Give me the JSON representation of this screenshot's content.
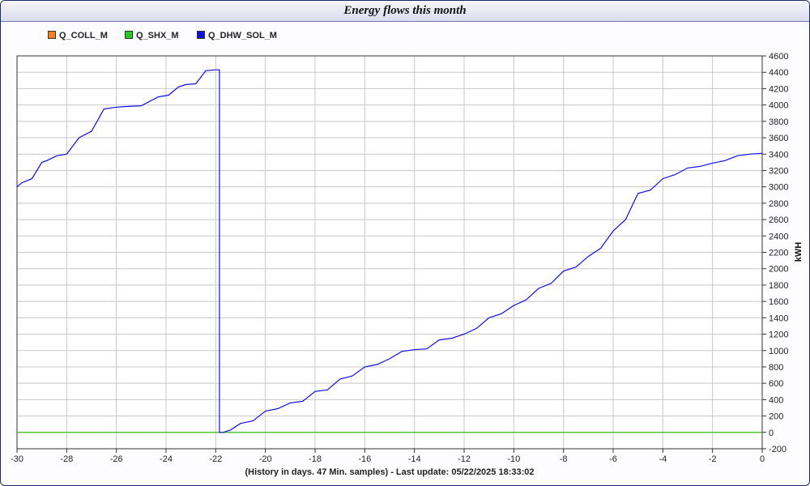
{
  "window": {
    "title": "Energy flows this month"
  },
  "footer": {
    "text": "(History in days. 47 Min. samples) - Last update: 05/22/2025 18:33:02"
  },
  "chart_data": {
    "type": "line",
    "title": "Energy flows this month",
    "xlabel": "(History in days. 47 Min. samples) - Last update: 05/22/2025 18:33:02",
    "ylabel": "kWH",
    "xlim": [
      -30,
      0
    ],
    "ylim": [
      -200,
      4600
    ],
    "x_ticks": [
      -30,
      -28,
      -26,
      -24,
      -22,
      -20,
      -18,
      -16,
      -14,
      -12,
      -10,
      -8,
      -6,
      -4,
      -2,
      0
    ],
    "y_ticks": [
      -200,
      0,
      200,
      400,
      600,
      800,
      1000,
      1200,
      1400,
      1600,
      1800,
      2000,
      2200,
      2400,
      2600,
      2800,
      3000,
      3200,
      3400,
      3600,
      3800,
      4000,
      4200,
      4400,
      4600
    ],
    "grid": true,
    "legend_position": "top-left",
    "series": [
      {
        "name": "Q_COLL_M",
        "color": "#f08020",
        "x": [
          -30,
          0
        ],
        "y": [
          0,
          0
        ]
      },
      {
        "name": "Q_SHX_M",
        "color": "#22cc22",
        "x": [
          -30,
          0
        ],
        "y": [
          0,
          0
        ]
      },
      {
        "name": "Q_DHW_SOL_M",
        "color": "#1010dd",
        "x": [
          -30,
          -29.8,
          -29.4,
          -29.0,
          -28.8,
          -28.4,
          -28.0,
          -27.5,
          -27.0,
          -26.5,
          -26.1,
          -25.7,
          -25.0,
          -24.3,
          -23.9,
          -23.5,
          -23.2,
          -22.8,
          -22.4,
          -22.0,
          -21.85,
          -21.85,
          -21.7,
          -21.4,
          -21.0,
          -20.5,
          -20.0,
          -19.5,
          -19.0,
          -18.5,
          -18.0,
          -17.5,
          -17.0,
          -16.5,
          -16.0,
          -15.5,
          -15.0,
          -14.5,
          -14.0,
          -13.5,
          -13.0,
          -12.5,
          -12.0,
          -11.5,
          -11.0,
          -10.5,
          -10.0,
          -9.5,
          -9.0,
          -8.5,
          -8.0,
          -7.5,
          -7.0,
          -6.5,
          -6.0,
          -5.5,
          -5.0,
          -4.5,
          -4.0,
          -3.5,
          -3.0,
          -2.5,
          -2.0,
          -1.5,
          -1.0,
          -0.5,
          0
        ],
        "y": [
          3000,
          3050,
          3100,
          3300,
          3320,
          3380,
          3400,
          3600,
          3680,
          3950,
          3970,
          3980,
          3990,
          4100,
          4120,
          4220,
          4250,
          4260,
          4420,
          4430,
          4430,
          0,
          0,
          30,
          110,
          140,
          260,
          290,
          360,
          380,
          500,
          520,
          650,
          690,
          800,
          830,
          900,
          990,
          1010,
          1020,
          1130,
          1150,
          1200,
          1270,
          1400,
          1450,
          1550,
          1620,
          1760,
          1820,
          1970,
          2020,
          2150,
          2250,
          2460,
          2600,
          2920,
          2960,
          3100,
          3150,
          3230,
          3250,
          3290,
          3320,
          3380,
          3400,
          3410
        ]
      }
    ]
  }
}
